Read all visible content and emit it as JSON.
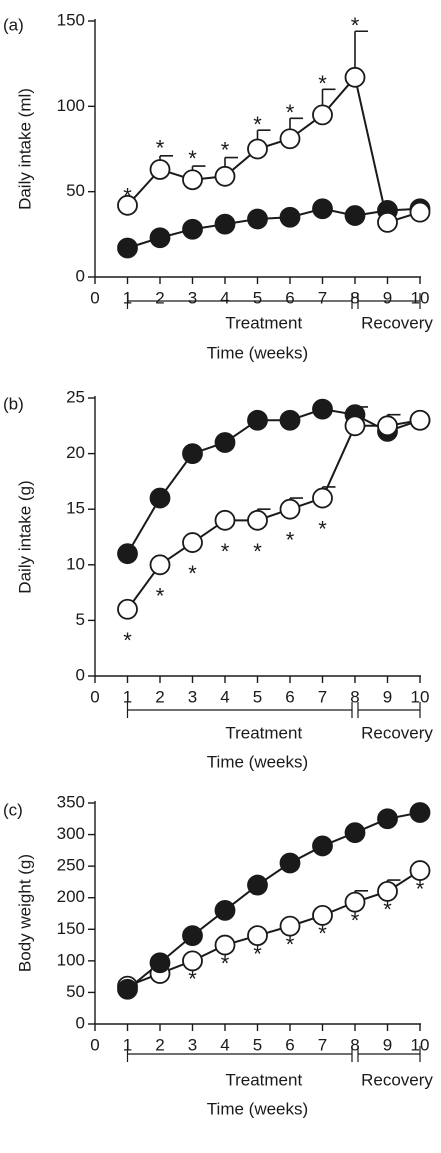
{
  "chart_data": [
    {
      "type": "line",
      "panel_label": "(a)",
      "ylabel": "Daily intake (ml)",
      "xlabel": "Time (weeks)",
      "ylim": [
        0,
        150
      ],
      "yticks": [
        0,
        50,
        100,
        150
      ],
      "xlim": [
        0,
        10
      ],
      "xticks": [
        0,
        1,
        2,
        3,
        4,
        5,
        6,
        7,
        8,
        9,
        10
      ],
      "groups": [
        {
          "label": "Treatment",
          "from": 1,
          "to": 8
        },
        {
          "label": "Recovery",
          "from": 8,
          "to": 10
        }
      ],
      "series": [
        {
          "marker": "filled",
          "x": [
            1,
            2,
            3,
            4,
            5,
            6,
            7,
            8,
            9,
            10
          ],
          "y": [
            17,
            23,
            28,
            31,
            34,
            35,
            40,
            36,
            39,
            40
          ],
          "err": [
            0,
            0,
            0,
            0,
            0,
            0,
            0,
            0,
            0,
            0
          ]
        },
        {
          "marker": "open",
          "x": [
            1,
            2,
            3,
            4,
            5,
            6,
            7,
            8,
            9,
            10
          ],
          "y": [
            42,
            63,
            57,
            59,
            75,
            81,
            95,
            117,
            32,
            38
          ],
          "err": [
            0,
            8,
            8,
            11,
            11,
            12,
            15,
            27,
            0,
            0
          ]
        }
      ],
      "annotations": [
        {
          "text": "*",
          "x": 1,
          "y": 50
        },
        {
          "text": "*",
          "x": 2,
          "y": 78
        },
        {
          "text": "*",
          "x": 3,
          "y": 72
        },
        {
          "text": "*",
          "x": 4,
          "y": 77
        },
        {
          "text": "*",
          "x": 5,
          "y": 92
        },
        {
          "text": "*",
          "x": 6,
          "y": 99
        },
        {
          "text": "*",
          "x": 7,
          "y": 116
        },
        {
          "text": "*",
          "x": 8,
          "y": 150
        }
      ]
    },
    {
      "type": "line",
      "panel_label": "(b)",
      "ylabel": "Daily intake (g)",
      "xlabel": "Time (weeks)",
      "ylim": [
        0,
        25
      ],
      "yticks": [
        0,
        5,
        10,
        15,
        20,
        25
      ],
      "xlim": [
        0,
        10
      ],
      "xticks": [
        0,
        1,
        2,
        3,
        4,
        5,
        6,
        7,
        8,
        9,
        10
      ],
      "groups": [
        {
          "label": "Treatment",
          "from": 1,
          "to": 8
        },
        {
          "label": "Recovery",
          "from": 8,
          "to": 10
        }
      ],
      "series": [
        {
          "marker": "filled",
          "x": [
            1,
            2,
            3,
            4,
            5,
            6,
            7,
            8,
            9,
            10
          ],
          "y": [
            11,
            16,
            20,
            21,
            23,
            23,
            24,
            23.5,
            22,
            23
          ],
          "err": [
            0,
            0,
            0,
            0,
            0,
            0,
            0,
            0.7,
            0,
            0
          ]
        },
        {
          "marker": "open",
          "x": [
            1,
            2,
            3,
            4,
            5,
            6,
            7,
            8,
            9,
            10
          ],
          "y": [
            6,
            10,
            12,
            14,
            14,
            15,
            16,
            22.5,
            22.5,
            23
          ],
          "err": [
            0,
            0,
            0,
            0,
            1,
            1,
            1,
            0,
            1,
            0
          ]
        }
      ],
      "annotations": [
        {
          "text": "*",
          "x": 1,
          "y": 3.6
        },
        {
          "text": "*",
          "x": 2,
          "y": 7.6
        },
        {
          "text": "*",
          "x": 3,
          "y": 9.6
        },
        {
          "text": "*",
          "x": 4,
          "y": 11.6
        },
        {
          "text": "*",
          "x": 5,
          "y": 11.6
        },
        {
          "text": "*",
          "x": 6,
          "y": 12.6
        },
        {
          "text": "*",
          "x": 7,
          "y": 13.6
        }
      ]
    },
    {
      "type": "line",
      "panel_label": "(c)",
      "ylabel": "Body weight (g)",
      "xlabel": "Time (weeks)",
      "ylim": [
        0,
        350
      ],
      "yticks": [
        0,
        50,
        100,
        150,
        200,
        250,
        300,
        350
      ],
      "xlim": [
        0,
        10
      ],
      "xticks": [
        0,
        1,
        2,
        3,
        4,
        5,
        6,
        7,
        8,
        9,
        10
      ],
      "groups": [
        {
          "label": "Treatment",
          "from": 1,
          "to": 8
        },
        {
          "label": "Recovery",
          "from": 8,
          "to": 10
        }
      ],
      "series": [
        {
          "marker": "open",
          "x": [
            1,
            2,
            3,
            4,
            5,
            6,
            7,
            8,
            9,
            10
          ],
          "y": [
            60,
            80,
            100,
            125,
            140,
            155,
            172,
            193,
            210,
            243
          ],
          "err": [
            0,
            0,
            0,
            0,
            0,
            0,
            0,
            18,
            18,
            0
          ]
        },
        {
          "marker": "filled",
          "x": [
            1,
            2,
            3,
            4,
            5,
            6,
            7,
            8,
            9,
            10
          ],
          "y": [
            55,
            97,
            140,
            180,
            220,
            255,
            282,
            303,
            325,
            335
          ],
          "err": [
            0,
            0,
            0,
            0,
            0,
            0,
            0,
            0,
            0,
            0
          ]
        }
      ],
      "annotations": [
        {
          "text": "*",
          "x": 3,
          "y": 78
        },
        {
          "text": "*",
          "x": 4,
          "y": 103
        },
        {
          "text": "*",
          "x": 5,
          "y": 118
        },
        {
          "text": "*",
          "x": 6,
          "y": 133
        },
        {
          "text": "*",
          "x": 7,
          "y": 150
        },
        {
          "text": "*",
          "x": 8,
          "y": 171
        },
        {
          "text": "*",
          "x": 9,
          "y": 188
        },
        {
          "text": "*",
          "x": 10,
          "y": 221
        }
      ]
    }
  ]
}
